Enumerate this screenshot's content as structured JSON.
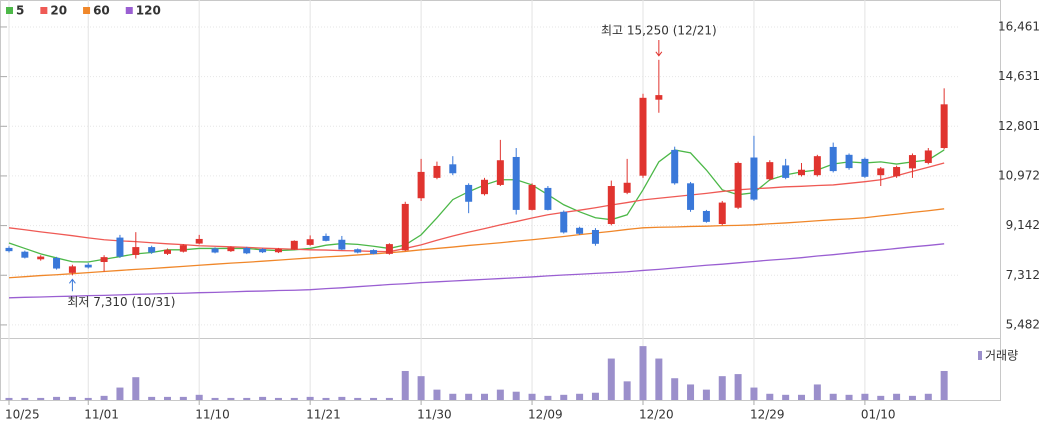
{
  "chart_data": {
    "type": "candlestick",
    "categories": [
      "10/25",
      null,
      null,
      null,
      null,
      "11/01",
      null,
      null,
      null,
      null,
      null,
      null,
      "11/10",
      null,
      null,
      null,
      null,
      null,
      null,
      "11/21",
      null,
      null,
      null,
      null,
      null,
      null,
      "11/30",
      null,
      null,
      null,
      null,
      null,
      null,
      "12/09",
      null,
      null,
      null,
      null,
      null,
      null,
      "12/20",
      null,
      null,
      null,
      null,
      null,
      null,
      "12/29",
      null,
      null,
      null,
      null,
      null,
      null,
      "01/10",
      null,
      null,
      null,
      null,
      null
    ],
    "ylim": [
      5000,
      17270
    ],
    "yticks": [
      {
        "value": 16461,
        "label": "16,461"
      },
      {
        "value": 14631,
        "label": "14,631"
      },
      {
        "value": 12801,
        "label": "12,801"
      },
      {
        "value": 10972,
        "label": "10,972"
      },
      {
        "value": 9142,
        "label": "9,142"
      },
      {
        "value": 7312,
        "label": "7,312"
      },
      {
        "value": 5482,
        "label": "5,482"
      }
    ],
    "grid": true,
    "candles": {
      "up_color": "#e0342f",
      "down_color": "#3a78d9",
      "open": [
        8320,
        8180,
        7900,
        7950,
        7400,
        7700,
        7800,
        8700,
        8060,
        8350,
        8100,
        8180,
        8480,
        8300,
        8200,
        8320,
        8280,
        8160,
        8260,
        8430,
        8760,
        8620,
        8270,
        8240,
        8100,
        8230,
        10150,
        10900,
        11400,
        10640,
        10300,
        10640,
        11670,
        9720,
        10530,
        9650,
        9060,
        8980,
        9200,
        10350,
        10980,
        13780,
        11930,
        10700,
        9680,
        9200,
        9800,
        11650,
        10850,
        11360,
        11000,
        11000,
        12040,
        11750,
        11600,
        11000,
        10960,
        11250,
        11450,
        12000
      ],
      "high": [
        8380,
        8220,
        8050,
        7990,
        7700,
        7760,
        8050,
        8800,
        8900,
        8400,
        8300,
        8460,
        8800,
        8340,
        8380,
        8360,
        8310,
        8320,
        8600,
        8780,
        8850,
        8760,
        8300,
        8270,
        8490,
        10020,
        11600,
        11500,
        11700,
        10700,
        10900,
        12300,
        12000,
        10700,
        10600,
        9700,
        9100,
        9050,
        10800,
        11600,
        14000,
        15250,
        12050,
        10750,
        9720,
        10050,
        11500,
        12450,
        11550,
        11600,
        11450,
        11750,
        12200,
        11800,
        11650,
        11300,
        11350,
        11800,
        12000,
        14200
      ],
      "low": [
        8150,
        7930,
        7850,
        7520,
        7310,
        7560,
        7450,
        7950,
        7930,
        8100,
        8060,
        8150,
        8450,
        8120,
        8170,
        8090,
        8130,
        8130,
        8240,
        8400,
        8560,
        8240,
        8120,
        8080,
        8070,
        8200,
        10050,
        10850,
        11000,
        9600,
        10250,
        10600,
        9550,
        9700,
        9700,
        8850,
        8800,
        8400,
        9150,
        10300,
        10900,
        13300,
        10650,
        9650,
        9250,
        9150,
        9750,
        10050,
        10800,
        10850,
        10950,
        10950,
        11100,
        11200,
        10900,
        10600,
        10900,
        10900,
        11400,
        11950
      ],
      "close": [
        8200,
        7960,
        8000,
        7560,
        7640,
        7600,
        7980,
        8000,
        8350,
        8150,
        8250,
        8420,
        8650,
        8150,
        8340,
        8120,
        8160,
        8280,
        8580,
        8640,
        8580,
        8260,
        8150,
        8100,
        8460,
        9940,
        11120,
        11340,
        11070,
        10020,
        10830,
        11550,
        9720,
        10640,
        9720,
        8890,
        8840,
        8470,
        10600,
        10720,
        13850,
        13950,
        10700,
        9720,
        9280,
        9990,
        11450,
        10100,
        11480,
        10900,
        11200,
        11700,
        11150,
        11260,
        10940,
        11250,
        11300,
        11740,
        11910,
        13610
      ]
    },
    "series": [
      {
        "name": "5",
        "color": "#4cb848",
        "values": [
          8500,
          8300,
          8100,
          7950,
          7810,
          7800,
          7900,
          8000,
          8100,
          8150,
          8250,
          8250,
          8300,
          8300,
          8300,
          8300,
          8250,
          8220,
          8250,
          8300,
          8420,
          8480,
          8450,
          8380,
          8300,
          8430,
          8800,
          9430,
          10100,
          10390,
          10640,
          10830,
          10830,
          10640,
          10280,
          9910,
          9650,
          9430,
          9360,
          9540,
          10460,
          11490,
          11930,
          11820,
          11190,
          10460,
          10280,
          10350,
          10830,
          11010,
          11120,
          11190,
          11410,
          11490,
          11450,
          11490,
          11410,
          11490,
          11560,
          11930
        ]
      },
      {
        "name": "20",
        "color": "#ef5a55",
        "values": [
          9060,
          8990,
          8910,
          8840,
          8770,
          8690,
          8620,
          8580,
          8550,
          8510,
          8470,
          8440,
          8400,
          8380,
          8360,
          8340,
          8310,
          8290,
          8270,
          8250,
          8240,
          8220,
          8210,
          8190,
          8180,
          8300,
          8430,
          8600,
          8760,
          8900,
          9030,
          9170,
          9290,
          9420,
          9540,
          9630,
          9710,
          9800,
          9900,
          9990,
          10090,
          10150,
          10210,
          10270,
          10330,
          10400,
          10460,
          10500,
          10530,
          10570,
          10590,
          10620,
          10640,
          10700,
          10760,
          10830,
          10980,
          11140,
          11290,
          11450
        ]
      },
      {
        "name": "60",
        "color": "#f0872a",
        "values": [
          7220,
          7260,
          7300,
          7330,
          7370,
          7410,
          7450,
          7490,
          7530,
          7560,
          7600,
          7640,
          7680,
          7720,
          7760,
          7790,
          7830,
          7870,
          7910,
          7950,
          7990,
          8020,
          8060,
          8100,
          8140,
          8190,
          8250,
          8300,
          8350,
          8410,
          8460,
          8510,
          8570,
          8620,
          8680,
          8740,
          8810,
          8870,
          8930,
          9000,
          9060,
          9080,
          9090,
          9110,
          9120,
          9140,
          9150,
          9170,
          9210,
          9240,
          9280,
          9320,
          9360,
          9390,
          9430,
          9500,
          9560,
          9630,
          9690,
          9760
        ]
      },
      {
        "name": "120",
        "color": "#9a5fd2",
        "values": [
          6480,
          6500,
          6510,
          6530,
          6540,
          6560,
          6570,
          6590,
          6610,
          6620,
          6640,
          6650,
          6670,
          6680,
          6700,
          6720,
          6730,
          6750,
          6760,
          6780,
          6820,
          6850,
          6890,
          6930,
          6970,
          7000,
          7040,
          7070,
          7100,
          7130,
          7160,
          7190,
          7220,
          7250,
          7290,
          7320,
          7350,
          7380,
          7410,
          7440,
          7490,
          7530,
          7580,
          7630,
          7680,
          7720,
          7770,
          7820,
          7870,
          7910,
          7960,
          8020,
          8070,
          8130,
          8190,
          8240,
          8300,
          8360,
          8410,
          8470
        ]
      }
    ],
    "volume": {
      "name": "거래량",
      "color": "#9b8fcb",
      "ylim": [
        0,
        55
      ],
      "values": [
        2,
        2,
        2,
        3,
        3,
        2,
        4,
        12,
        22,
        3,
        3,
        3,
        5,
        2,
        2,
        2,
        3,
        2,
        2,
        3,
        2,
        3,
        2,
        2,
        2,
        28,
        23,
        10,
        6,
        6,
        6,
        10,
        8,
        6,
        4,
        5,
        6,
        7,
        40,
        18,
        52,
        40,
        21,
        15,
        10,
        23,
        25,
        12,
        6,
        5,
        5,
        15,
        6,
        5,
        6,
        4,
        6,
        4,
        6,
        28
      ]
    },
    "annotations": {
      "high": "최고 15,250 (12/21)",
      "low": "최저 7,310 (10/31)"
    }
  }
}
